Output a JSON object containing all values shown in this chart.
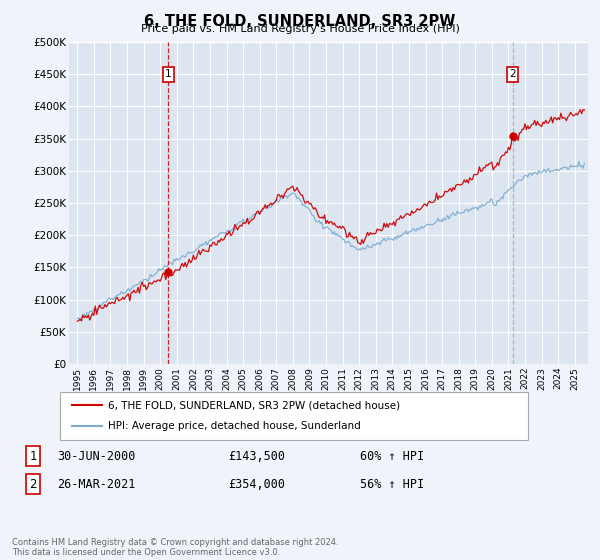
{
  "title": "6, THE FOLD, SUNDERLAND, SR3 2PW",
  "subtitle": "Price paid vs. HM Land Registry's House Price Index (HPI)",
  "background_color": "#f0f4fa",
  "plot_bg_color": "#dde6f0",
  "grid_color": "#ffffff",
  "red_line_color": "#cc0000",
  "blue_line_color": "#7aaad0",
  "vline1_color": "#cc0000",
  "vline2_color": "#aaaaaa",
  "ylim": [
    0,
    500000
  ],
  "yticks": [
    0,
    50000,
    100000,
    150000,
    200000,
    250000,
    300000,
    350000,
    400000,
    450000,
    500000
  ],
  "ytick_labels": [
    "£0",
    "£50K",
    "£100K",
    "£150K",
    "£200K",
    "£250K",
    "£300K",
    "£350K",
    "£400K",
    "£450K",
    "£500K"
  ],
  "legend_entry1": "6, THE FOLD, SUNDERLAND, SR3 2PW (detached house)",
  "legend_entry2": "HPI: Average price, detached house, Sunderland",
  "transaction1_date": "30-JUN-2000",
  "transaction1_price": "£143,500",
  "transaction1_pct": "60% ↑ HPI",
  "transaction2_date": "26-MAR-2021",
  "transaction2_price": "£354,000",
  "transaction2_pct": "56% ↑ HPI",
  "footnote": "Contains HM Land Registry data © Crown copyright and database right 2024.\nThis data is licensed under the Open Government Licence v3.0.",
  "marker1_x": 2000.5,
  "marker1_y": 143500,
  "marker2_x": 2021.25,
  "marker2_y": 354000,
  "vline1_x": 2000.5,
  "vline2_x": 2021.25,
  "xlim_left": 1994.5,
  "xlim_right": 2025.8
}
